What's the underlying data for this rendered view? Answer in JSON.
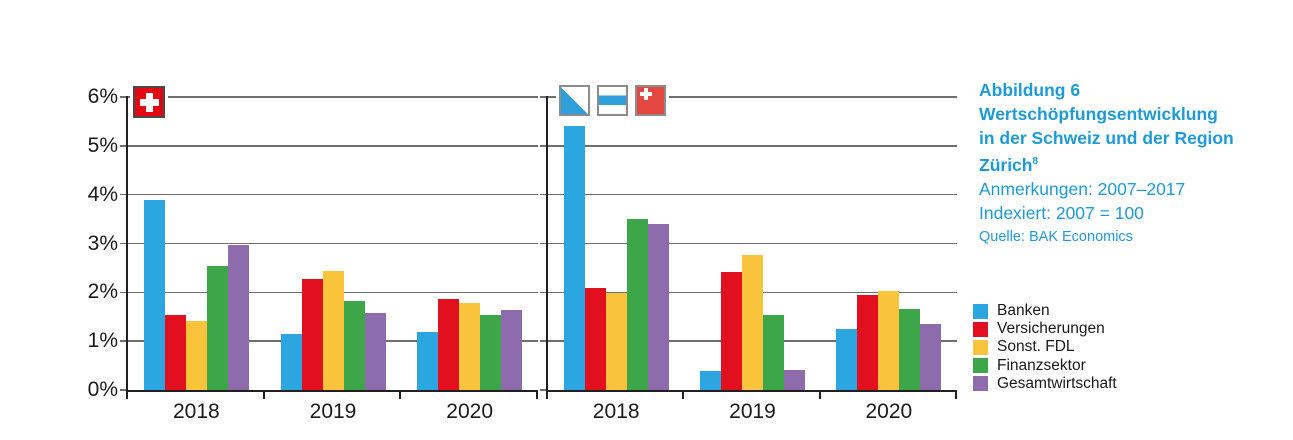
{
  "figure": {
    "heading_line1": "Abbildung 6",
    "heading_line2": "Wertschöpfungsentwicklung",
    "heading_line3": "in der Schweiz und der Region",
    "heading_line4": "Zürich",
    "footnote_marker": "8",
    "note_period": "Anmerkungen: 2007–2017",
    "note_index": "Indexiert: 2007 = 100",
    "source": "Quelle: BAK Economics",
    "accent_color": "#1c9bd8"
  },
  "colors": {
    "axis": "#231f20",
    "grid": "#6d6e70",
    "text": "#1a1a1a",
    "banken": "#2ba6e0",
    "versicherungen": "#e2101e",
    "sonst_fdl": "#fac33c",
    "finanzsektor": "#3ca648",
    "gesamtwirtschaft": "#8d6bac"
  },
  "legend": {
    "items": [
      {
        "label": "Banken",
        "color": "#2ba6e0"
      },
      {
        "label": "Versicherungen",
        "color": "#e2101e"
      },
      {
        "label": "Sonst. FDL",
        "color": "#fac33c"
      },
      {
        "label": "Finanzsektor",
        "color": "#3ca648"
      },
      {
        "label": "Gesamtwirtschaft",
        "color": "#8d6bac"
      }
    ]
  },
  "flags": {
    "left_chart": [
      "switzerland-flag"
    ],
    "right_chart": [
      "zurich-flag",
      "zug-flag",
      "schwyz-flag"
    ]
  },
  "chart_data": [
    {
      "type": "bar",
      "region": "Schweiz",
      "categories": [
        "2018",
        "2019",
        "2020"
      ],
      "series": [
        {
          "name": "Banken",
          "color": "#2ba6e0",
          "values": [
            3.9,
            1.15,
            1.18
          ]
        },
        {
          "name": "Versicherungen",
          "color": "#e2101e",
          "values": [
            1.54,
            2.27,
            1.86
          ]
        },
        {
          "name": "Sonst. FDL",
          "color": "#fac33c",
          "values": [
            1.41,
            2.43,
            1.79
          ]
        },
        {
          "name": "Finanzsektor",
          "color": "#3ca648",
          "values": [
            2.53,
            1.82,
            1.54
          ]
        },
        {
          "name": "Gesamtwirtschaft",
          "color": "#8d6bac",
          "values": [
            2.97,
            1.57,
            1.63
          ]
        }
      ],
      "ylim": [
        0,
        6
      ],
      "ytick_labels": [
        "0%",
        "1%",
        "2%",
        "3%",
        "4%",
        "5%",
        "6%"
      ],
      "show_ytick_labels": true,
      "grid": true,
      "unit": "%"
    },
    {
      "type": "bar",
      "region": "Region Zürich",
      "categories": [
        "2018",
        "2019",
        "2020"
      ],
      "series": [
        {
          "name": "Banken",
          "color": "#2ba6e0",
          "values": [
            5.4,
            0.38,
            1.24
          ]
        },
        {
          "name": "Versicherungen",
          "color": "#e2101e",
          "values": [
            2.09,
            2.42,
            1.95
          ]
        },
        {
          "name": "Sonst. FDL",
          "color": "#fac33c",
          "values": [
            1.98,
            2.76,
            2.02
          ]
        },
        {
          "name": "Finanzsektor",
          "color": "#3ca648",
          "values": [
            3.5,
            1.53,
            1.65
          ]
        },
        {
          "name": "Gesamtwirtschaft",
          "color": "#8d6bac",
          "values": [
            3.39,
            0.4,
            1.36
          ]
        }
      ],
      "ylim": [
        0,
        6
      ],
      "ytick_labels": [],
      "show_ytick_labels": false,
      "grid": true,
      "unit": "%"
    }
  ]
}
